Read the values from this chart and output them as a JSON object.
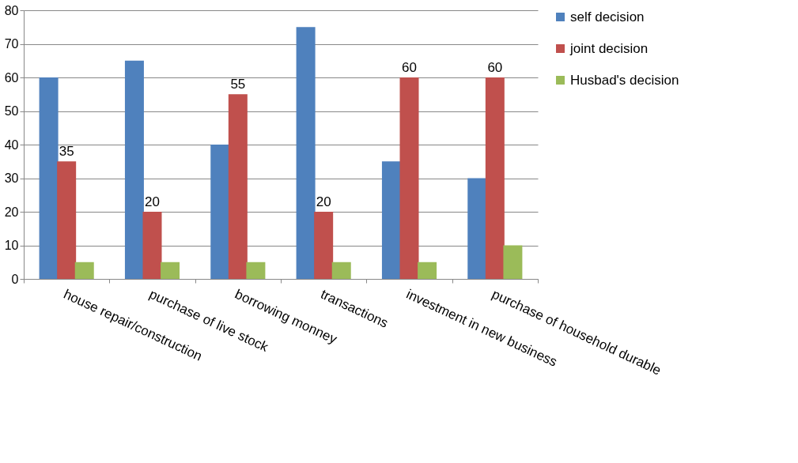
{
  "chart_data": {
    "type": "bar",
    "categories": [
      "house repair/construction",
      "purchase of live stock",
      "borrowing monney",
      "transactions",
      "investment in new business",
      "purchase of household durable"
    ],
    "series": [
      {
        "name": "self decision",
        "color": "#4f81bd",
        "values": [
          60,
          65,
          40,
          75,
          35,
          30
        ]
      },
      {
        "name": "joint decision",
        "color": "#c0504d",
        "values": [
          35,
          20,
          55,
          20,
          60,
          60
        ],
        "value_labels": [
          "35",
          "20",
          "55",
          "20",
          "60",
          "60"
        ]
      },
      {
        "name": "Husbad's decision",
        "color": "#9bbb59",
        "values": [
          5,
          5,
          5,
          5,
          5,
          10
        ]
      }
    ],
    "ylim": [
      0,
      80
    ],
    "yticks": [
      0,
      10,
      20,
      30,
      40,
      50,
      60,
      70,
      80
    ],
    "grid": "y",
    "legend": "right"
  }
}
